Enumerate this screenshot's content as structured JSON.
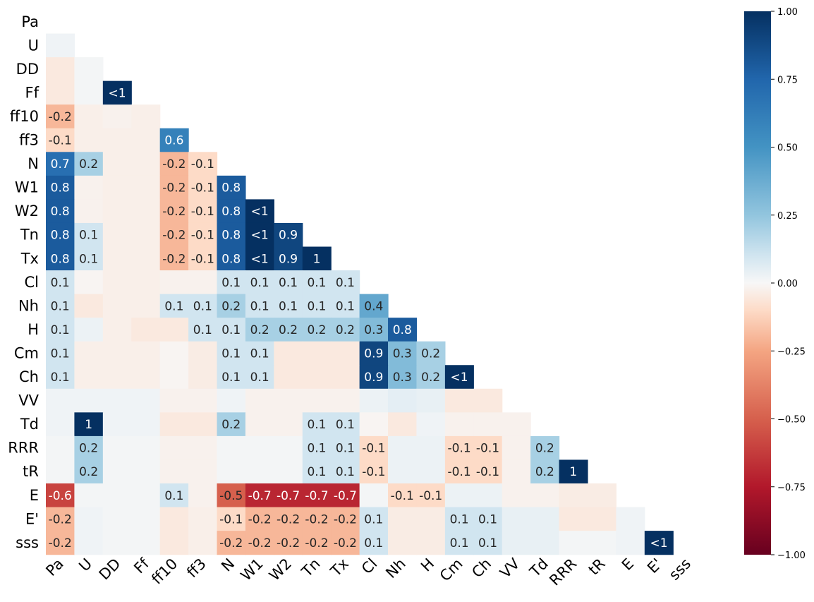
{
  "chart_data": {
    "type": "heatmap",
    "title": "",
    "xlabel": "",
    "ylabel": "",
    "variables": [
      "Pa",
      "U",
      "DD",
      "Ff",
      "ff10",
      "ff3",
      "N",
      "W1",
      "W2",
      "Tn",
      "Tx",
      "Cl",
      "Nh",
      "H",
      "Cm",
      "Ch",
      "VV",
      "Td",
      "RRR",
      "tR",
      "E",
      "E'",
      "sss"
    ],
    "matrix": [
      [],
      [
        0.02
      ],
      [
        -0.05,
        0.01
      ],
      [
        -0.05,
        0.01,
        1.0
      ],
      [
        -0.2,
        -0.03,
        -0.02,
        -0.03
      ],
      [
        -0.1,
        -0.03,
        -0.03,
        -0.03,
        0.6
      ],
      [
        0.7,
        0.2,
        -0.03,
        -0.03,
        -0.2,
        -0.1
      ],
      [
        0.8,
        -0.02,
        -0.03,
        -0.03,
        -0.2,
        -0.1,
        0.8
      ],
      [
        0.8,
        -0.02,
        -0.03,
        -0.03,
        -0.2,
        -0.1,
        0.8,
        1.0
      ],
      [
        0.8,
        0.1,
        -0.03,
        -0.03,
        -0.2,
        -0.1,
        0.8,
        1.0,
        0.9
      ],
      [
        0.8,
        0.1,
        -0.03,
        -0.03,
        -0.2,
        -0.1,
        0.8,
        1.0,
        0.9,
        1.0
      ],
      [
        0.1,
        -0.01,
        -0.03,
        -0.03,
        -0.02,
        -0.02,
        0.1,
        0.1,
        0.1,
        0.1,
        0.1
      ],
      [
        0.1,
        -0.05,
        -0.03,
        -0.03,
        0.1,
        0.1,
        0.2,
        0.1,
        0.1,
        0.1,
        0.1,
        0.4
      ],
      [
        0.1,
        0.03,
        -0.03,
        -0.05,
        -0.05,
        0.1,
        0.1,
        0.2,
        0.2,
        0.2,
        0.2,
        0.3,
        0.8
      ],
      [
        0.1,
        -0.03,
        -0.03,
        -0.03,
        -0.01,
        -0.04,
        0.1,
        0.1,
        -0.05,
        -0.05,
        -0.05,
        0.9,
        0.3,
        0.2
      ],
      [
        0.1,
        -0.03,
        -0.03,
        -0.03,
        -0.01,
        -0.04,
        0.1,
        0.1,
        -0.05,
        -0.05,
        -0.05,
        0.9,
        0.3,
        0.2,
        1.0
      ],
      [
        0.02,
        0.02,
        0.02,
        0.02,
        -0.02,
        -0.02,
        0.02,
        -0.02,
        -0.02,
        -0.02,
        -0.02,
        0.03,
        0.05,
        0.04,
        -0.05,
        -0.05
      ],
      [
        0.02,
        1.0,
        0.02,
        0.02,
        -0.05,
        -0.05,
        0.2,
        -0.02,
        -0.02,
        0.1,
        0.1,
        -0.01,
        -0.05,
        0.02,
        -0.02,
        -0.02,
        -0.02
      ],
      [
        0.01,
        0.2,
        0.01,
        0.01,
        -0.02,
        -0.02,
        0.01,
        0.01,
        0.01,
        0.1,
        0.1,
        -0.1,
        0.03,
        0.03,
        -0.1,
        -0.1,
        -0.02,
        0.2
      ],
      [
        0.01,
        0.2,
        0.01,
        0.01,
        -0.02,
        -0.02,
        0.01,
        0.01,
        0.01,
        0.1,
        0.1,
        -0.1,
        0.03,
        0.03,
        -0.1,
        -0.1,
        -0.02,
        0.2,
        1.0
      ],
      [
        -0.6,
        0.01,
        0.01,
        0.01,
        0.1,
        -0.02,
        -0.5,
        -0.7,
        -0.7,
        -0.7,
        -0.7,
        0.01,
        -0.1,
        -0.1,
        0.03,
        0.03,
        -0.02,
        -0.02,
        -0.04,
        -0.04
      ],
      [
        -0.2,
        0.02,
        0.01,
        0.01,
        -0.05,
        -0.03,
        -0.1,
        -0.2,
        -0.2,
        -0.2,
        -0.2,
        0.1,
        -0.04,
        -0.04,
        0.1,
        0.1,
        0.04,
        0.04,
        -0.05,
        -0.05,
        0.02
      ],
      [
        -0.2,
        0.02,
        0.01,
        0.01,
        -0.05,
        -0.03,
        -0.2,
        -0.2,
        -0.2,
        -0.2,
        -0.2,
        0.1,
        -0.04,
        -0.04,
        0.1,
        0.1,
        0.04,
        0.04,
        0.01,
        0.01,
        0.02,
        1.0
      ]
    ],
    "cell_labels": [
      [],
      [
        "",
        "",
        "",
        "",
        "",
        "",
        "",
        "",
        "",
        "",
        "",
        "",
        "",
        "",
        "",
        "",
        "",
        "",
        "",
        "",
        "",
        ""
      ],
      [],
      [
        "",
        "",
        "<1"
      ],
      [
        "-0.2"
      ],
      [
        "-0.1",
        "",
        "",
        "",
        "0.6"
      ],
      [
        "0.7",
        "0.2",
        "",
        "",
        "-0.2",
        "-0.1"
      ],
      [
        "0.8",
        "",
        "",
        "",
        "-0.2",
        "-0.1",
        "0.8"
      ],
      [
        "0.8",
        "",
        "",
        "",
        "-0.2",
        "-0.1",
        "0.8",
        "<1"
      ],
      [
        "0.8",
        "0.1",
        "",
        "",
        "-0.2",
        "-0.1",
        "0.8",
        "<1",
        "0.9"
      ],
      [
        "0.8",
        "0.1",
        "",
        "",
        "-0.2",
        "-0.1",
        "0.8",
        "<1",
        "0.9",
        "1"
      ],
      [
        "0.1",
        "",
        "",
        "",
        "",
        "",
        "0.1",
        "0.1",
        "0.1",
        "0.1",
        "0.1"
      ],
      [
        "0.1",
        "",
        "",
        "",
        "0.1",
        "0.1",
        "0.2",
        "0.1",
        "0.1",
        "0.1",
        "0.1",
        "0.4"
      ],
      [
        "0.1",
        "",
        "",
        "",
        "",
        "0.1",
        "0.1",
        "0.2",
        "0.2",
        "0.2",
        "0.2",
        "0.3",
        "0.8"
      ],
      [
        "0.1",
        "",
        "",
        "",
        "",
        "",
        "0.1",
        "0.1",
        "",
        "",
        "",
        "0.9",
        "0.3",
        "0.2"
      ],
      [
        "0.1",
        "",
        "",
        "",
        "",
        "",
        "0.1",
        "0.1",
        "",
        "",
        "",
        "0.9",
        "0.3",
        "0.2",
        "<1"
      ],
      [],
      [
        "",
        "1",
        "",
        "",
        "",
        "",
        "0.2",
        "",
        "",
        "0.1",
        "0.1"
      ],
      [
        "",
        "0.2",
        "",
        "",
        "",
        "",
        "",
        "",
        "",
        "0.1",
        "0.1",
        "-0.1",
        "",
        "",
        "-0.1",
        "-0.1",
        "",
        "0.2"
      ],
      [
        "",
        "0.2",
        "",
        "",
        "",
        "",
        "",
        "",
        "",
        "0.1",
        "0.1",
        "-0.1",
        "",
        "",
        "-0.1",
        "-0.1",
        "",
        "0.2",
        "1"
      ],
      [
        "-0.6",
        "",
        "",
        "",
        "0.1",
        "",
        "-0.5",
        "-0.7",
        "-0.7",
        "-0.7",
        "-0.7",
        "",
        "-0.1",
        "-0.1"
      ],
      [
        "-0.2",
        "",
        "",
        "",
        "",
        "",
        "-0.1",
        "-0.2",
        "-0.2",
        "-0.2",
        "-0.2",
        "0.1",
        "",
        "",
        "0.1",
        "0.1"
      ],
      [
        "-0.2",
        "",
        "",
        "",
        "",
        "",
        "-0.2",
        "-0.2",
        "-0.2",
        "-0.2",
        "-0.2",
        "0.1",
        "",
        "",
        "0.1",
        "0.1",
        "",
        "",
        "",
        "",
        "",
        "<1"
      ]
    ],
    "vmin": -1.0,
    "vmax": 1.0,
    "colormap": "RdBu",
    "colorbar_ticks": [
      1.0,
      0.75,
      0.5,
      0.25,
      0.0,
      -0.25,
      -0.5,
      -0.75,
      -1.0
    ],
    "colorbar_tick_labels": [
      "1.00",
      "0.75",
      "0.50",
      "0.25",
      "0.00",
      "−0.25",
      "−0.50",
      "−0.75",
      "−1.00"
    ],
    "grid": false,
    "legend": "colorbar-right"
  }
}
